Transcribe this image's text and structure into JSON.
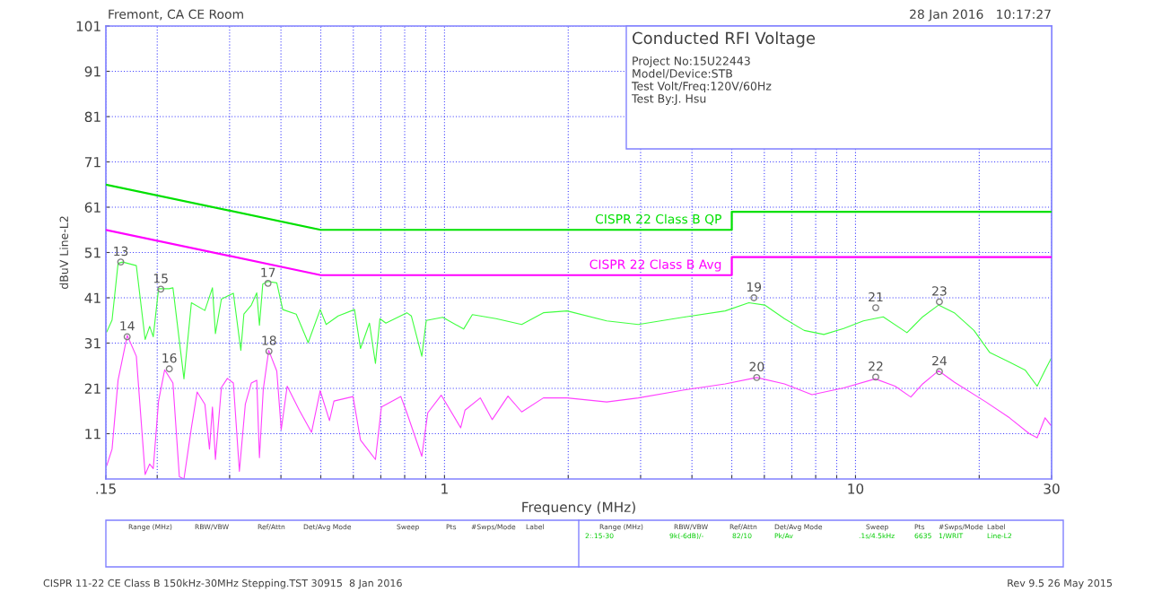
{
  "chart_data": {
    "type": "line",
    "title": "Conducted RFI Voltage",
    "xlabel": "Frequency (MHz)",
    "ylabel": "dBuV Line-L2",
    "log": "x",
    "grid": true,
    "legend": false,
    "xlim": [
      0.15,
      30
    ],
    "ylim": [
      1,
      101
    ],
    "xticks": [
      {
        "value": 0.15,
        "label": ".15"
      },
      {
        "value": 0.2,
        "label": null
      },
      {
        "value": 0.3,
        "label": null
      },
      {
        "value": 0.4,
        "label": null
      },
      {
        "value": 0.5,
        "label": null
      },
      {
        "value": 0.6,
        "label": null
      },
      {
        "value": 0.7,
        "label": null
      },
      {
        "value": 0.8,
        "label": null
      },
      {
        "value": 0.9,
        "label": null
      },
      1,
      {
        "value": 2,
        "label": null
      },
      {
        "value": 3,
        "label": null
      },
      {
        "value": 4,
        "label": null
      },
      {
        "value": 5,
        "label": null
      },
      {
        "value": 6,
        "label": null
      },
      {
        "value": 7,
        "label": null
      },
      {
        "value": 8,
        "label": null
      },
      {
        "value": 9,
        "label": null
      },
      10,
      {
        "value": 20,
        "label": null
      },
      30
    ],
    "yticks": [
      11,
      21,
      31,
      41,
      51,
      61,
      71,
      81,
      91,
      101
    ],
    "series": [
      {
        "name": "CISPR 22 Class B QP",
        "color": "#00e000",
        "x": [
          0.15,
          0.5,
          5,
          5,
          30
        ],
        "values": [
          66,
          56,
          56,
          60,
          60
        ]
      },
      {
        "name": "CISPR 22 Class B Avg",
        "color": "#ff00ff",
        "x": [
          0.15,
          0.5,
          5,
          5,
          30
        ],
        "values": [
          56,
          46,
          46,
          50,
          50
        ]
      },
      {
        "color": "#40ff40",
        "x": [
          0.1508,
          0.1553,
          0.1606,
          0.1648,
          0.1779,
          0.1869,
          0.1917,
          0.1956,
          0.2015,
          0.2137,
          0.2184,
          0.2323,
          0.2422,
          0.2612,
          0.2725,
          0.2771,
          0.2865,
          0.3064,
          0.3195,
          0.325,
          0.3389,
          0.3493,
          0.3546,
          0.3612,
          0.3716,
          0.3908,
          0.404,
          0.4357,
          0.4659,
          0.4983,
          0.5153,
          0.5511,
          0.604,
          0.6246,
          0.6568,
          0.6792,
          0.6964,
          0.72,
          0.8098,
          0.8303,
          0.8806,
          0.9029,
          0.99,
          1.113,
          1.169,
          1.335,
          1.541,
          1.74,
          1.988,
          2.481,
          2.961,
          3.862,
          4.819,
          5.502,
          6.012,
          6.715,
          7.5,
          8.376,
          9.356,
          10.45,
          11.68,
          13.34,
          14.57,
          15.92,
          17.39,
          19.42,
          21.22,
          23.7,
          25.9,
          27.67,
          28.92,
          29.91
        ],
        "values": [
          33.5,
          36.1,
          48.6,
          48.9,
          48.1,
          31.8,
          34.7,
          32.4,
          43.0,
          43.0,
          43.2,
          23.1,
          39.9,
          38.2,
          43.2,
          33.1,
          40.7,
          42.0,
          29.4,
          37.4,
          39.4,
          42.1,
          34.9,
          44.0,
          44.6,
          44.3,
          38.4,
          37.4,
          31.1,
          38.4,
          35.1,
          37.0,
          38.4,
          29.8,
          35.4,
          26.5,
          36.4,
          35.4,
          37.7,
          37.0,
          28.1,
          36.0,
          36.7,
          34.1,
          37.3,
          36.4,
          35.1,
          37.7,
          38.1,
          35.9,
          35.1,
          36.8,
          38.1,
          39.9,
          39.4,
          36.4,
          33.8,
          32.9,
          34.2,
          35.9,
          36.8,
          33.3,
          36.8,
          39.4,
          37.7,
          33.8,
          28.9,
          26.8,
          25.0,
          21.5,
          25.0,
          27.6
        ]
      },
      {
        "color": "#ff40ff",
        "x": [
          0.1508,
          0.1553,
          0.1606,
          0.1691,
          0.1779,
          0.1869,
          0.1917,
          0.1956,
          0.2015,
          0.2085,
          0.2184,
          0.2264,
          0.2323,
          0.2422,
          0.2501,
          0.2612,
          0.268,
          0.2725,
          0.2771,
          0.2865,
          0.2963,
          0.3064,
          0.3169,
          0.3276,
          0.3389,
          0.3493,
          0.3546,
          0.3623,
          0.3735,
          0.3908,
          0.4006,
          0.4142,
          0.4432,
          0.4748,
          0.4983,
          0.5249,
          0.5383,
          0.599,
          0.6246,
          0.6792,
          0.7022,
          0.783,
          0.8098,
          0.8806,
          0.9104,
          0.9817,
          1.095,
          1.122,
          1.222,
          1.306,
          1.427,
          1.541,
          1.74,
          1.988,
          2.481,
          2.961,
          3.862,
          4.819,
          5.751,
          6.715,
          7.838,
          9.356,
          11.17,
          12.48,
          13.63,
          14.57,
          15.92,
          17.39,
          20.76,
          23.7,
          26.48,
          27.67,
          28.92,
          29.91
        ],
        "values": [
          4.0,
          7.6,
          22.8,
          32.7,
          28.1,
          2.0,
          4.3,
          3.3,
          18.2,
          25.1,
          22.2,
          1.5,
          1.0,
          12.3,
          20.2,
          17.5,
          7.6,
          16.9,
          5.3,
          21.2,
          23.2,
          22.2,
          2.7,
          17.5,
          22.2,
          22.8,
          5.7,
          20.8,
          29.4,
          24.8,
          11.9,
          21.5,
          16.2,
          11.3,
          20.5,
          13.9,
          18.2,
          19.2,
          9.6,
          5.3,
          16.9,
          19.2,
          15.6,
          6.0,
          15.6,
          19.5,
          12.3,
          16.2,
          18.9,
          14.1,
          19.3,
          15.8,
          18.9,
          18.9,
          18.0,
          18.9,
          20.7,
          22.0,
          23.4,
          22.0,
          19.6,
          21.1,
          23.1,
          21.5,
          19.1,
          22.0,
          24.9,
          22.4,
          18.0,
          14.5,
          11.0,
          10.1,
          14.5,
          12.8
        ]
      },
      {
        "type": "scatter",
        "color": "#808080",
        "marker": "circle",
        "x": [
          0.163,
          0.169,
          0.204,
          0.214,
          0.372,
          0.374,
          5.66,
          5.75,
          11.2,
          11.2,
          16.0,
          16.0
        ],
        "values": [
          48.9,
          32.4,
          42.9,
          25.3,
          44.2,
          29.2,
          41.0,
          23.4,
          38.8,
          23.5,
          40.1,
          24.7
        ]
      }
    ],
    "annotations": [
      "Fremont, CA CE Room",
      "28 Jan 2016   10:17:27",
      "Project No:15U22443",
      "Model/Device:STB",
      "Test Volt/Freq:120V/60Hz",
      "Test By:J. Hsu",
      "Range (MHz)",
      "RBW/VBW",
      "Ref/Attn",
      "Det/Avg Mode",
      "Sweep",
      "Pts",
      "#Swps/Mode",
      "Label",
      "Range (MHz)",
      "RBW/VBW",
      "Ref/Attn",
      "Det/Avg Mode",
      "Sweep",
      "Pts",
      "#Swps/Mode",
      "Label",
      "2:.15-30",
      "9k(-6dB)/-",
      "82/10",
      "Pk/Av",
      ".1s/4.5kHz",
      "6635",
      "1/WRIT",
      "Line-L2",
      "CISPR 11-22 CE Class B 150kHz-30MHz Stepping.TST 30915  8 Jan 2016",
      "Rev 9.5 26 May 2015",
      {
        "text": "13",
        "x": 0.163,
        "y": 48.9
      },
      {
        "text": "14",
        "x": 0.169,
        "y": 32.4
      },
      {
        "text": "15",
        "x": 0.204,
        "y": 42.9
      },
      {
        "text": "16",
        "x": 0.214,
        "y": 25.3
      },
      {
        "text": "17",
        "x": 0.372,
        "y": 44.2
      },
      {
        "text": "18",
        "x": 0.374,
        "y": 29.2
      },
      {
        "text": "19",
        "x": 5.66,
        "y": 41.0
      },
      {
        "text": "20",
        "x": 5.75,
        "y": 23.4
      },
      {
        "text": "21",
        "x": 11.2,
        "y": 38.8
      },
      {
        "text": "22",
        "x": 11.2,
        "y": 23.5
      },
      {
        "text": "23",
        "x": 16.0,
        "y": 40.1
      },
      {
        "text": "24",
        "x": 16.0,
        "y": 24.7
      }
    ]
  }
}
